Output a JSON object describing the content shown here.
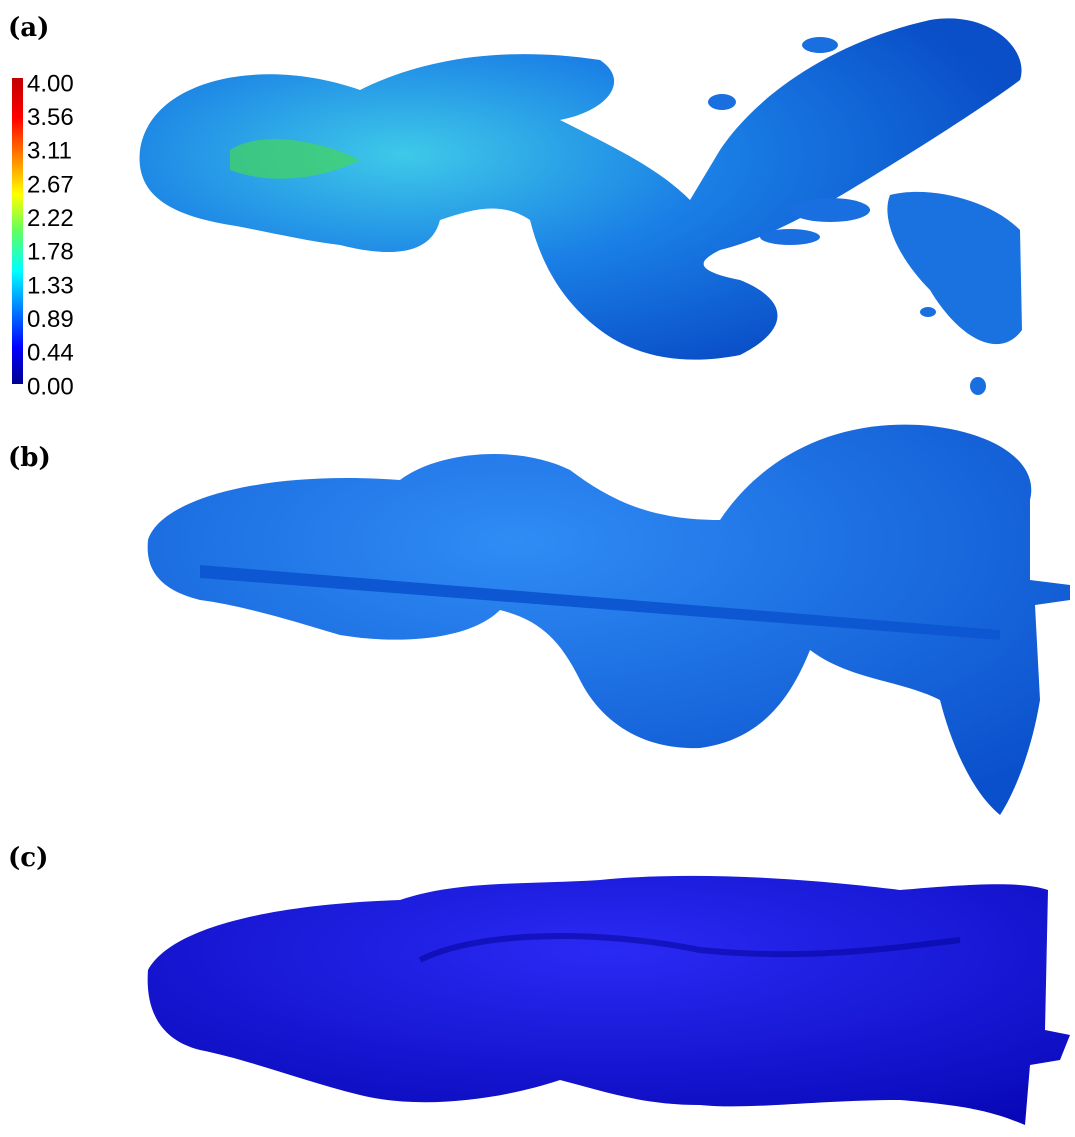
{
  "panels": [
    {
      "label": "(a)"
    },
    {
      "label": "(b)"
    },
    {
      "label": "(c)"
    }
  ],
  "colorbar": {
    "ticks": [
      "4.00",
      "3.56",
      "3.11",
      "2.67",
      "2.22",
      "1.78",
      "1.33",
      "0.89",
      "0.44",
      "0.00"
    ]
  }
}
